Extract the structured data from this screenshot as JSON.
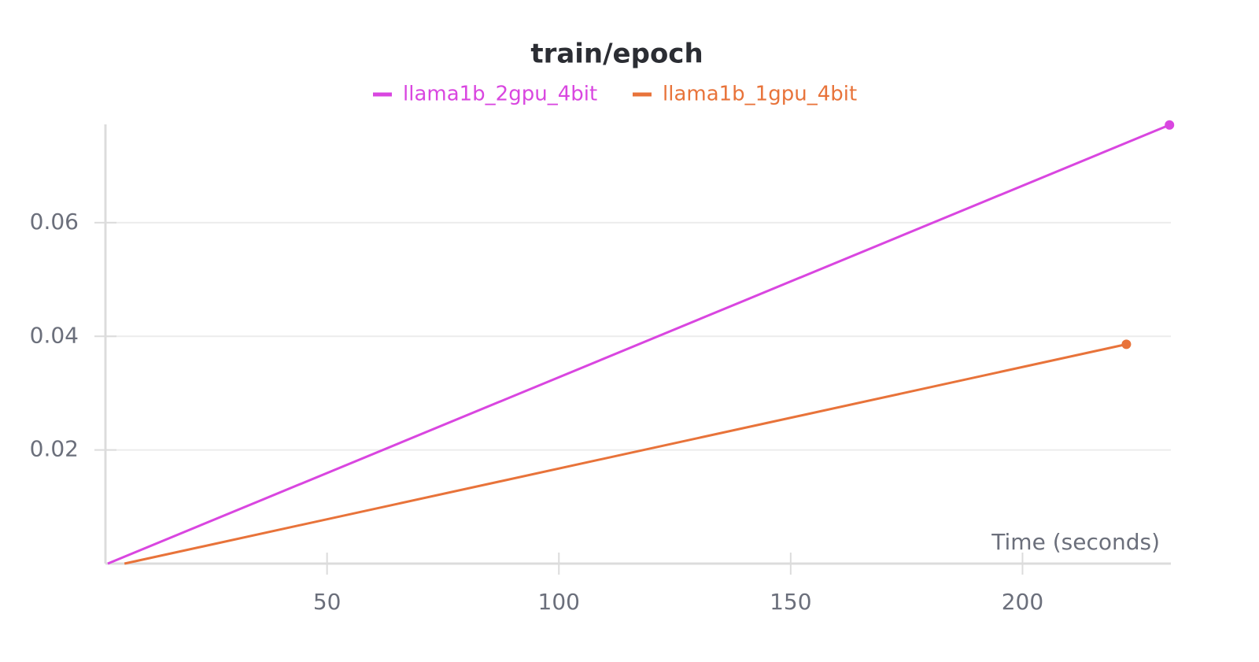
{
  "chart_data": {
    "type": "line",
    "title": "train/epoch",
    "x_label": "Time (seconds)",
    "series": [
      {
        "name": "llama1b_2gpu_4bit",
        "color": "#d946e0",
        "x": [
          2.7,
          231.7
        ],
        "values": [
          0,
          0.0772
        ]
      },
      {
        "name": "llama1b_1gpu_4bit",
        "color": "#e8733a",
        "x": [
          6.3,
          222.4
        ],
        "values": [
          0,
          0.0386
        ]
      }
    ],
    "xlim": [
      2.2,
      232
    ],
    "xticks": [
      50,
      100,
      150,
      200
    ],
    "ylim": [
      0,
      0.078
    ],
    "yticks": [
      0.02,
      0.04,
      0.06
    ],
    "grid": true,
    "legend": "top"
  }
}
